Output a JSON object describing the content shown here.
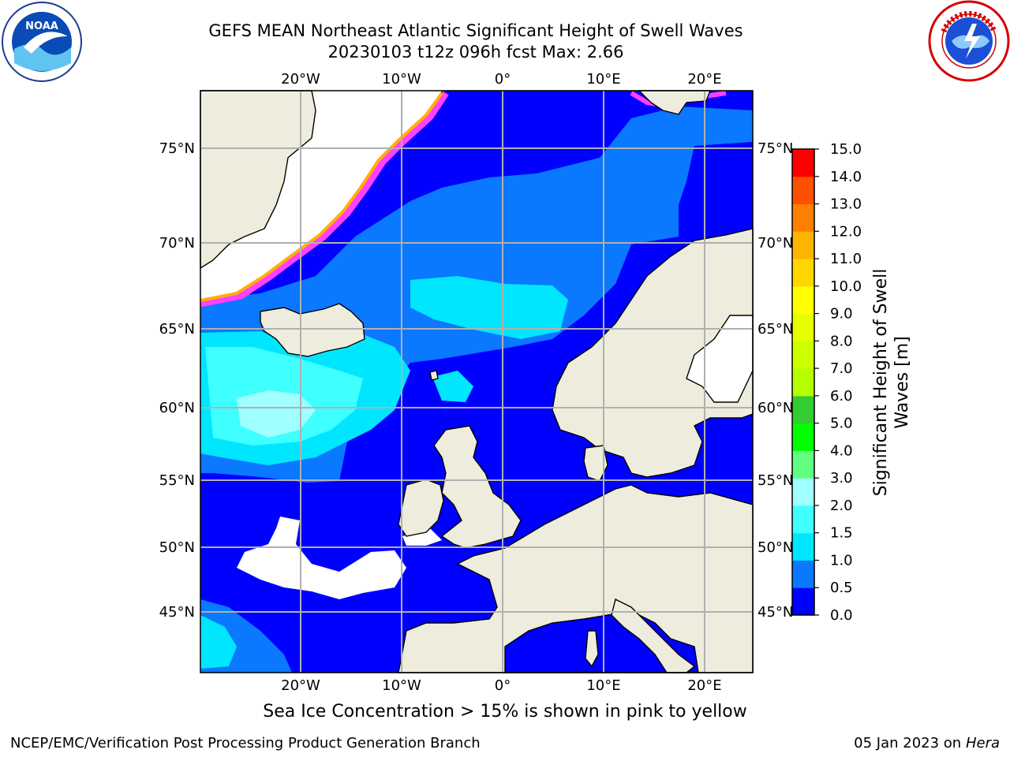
{
  "header": {
    "title_line1": "GEFS MEAN Northeast Atlantic Significant Height of Swell Waves",
    "title_line2": "20230103 t12z 096h fcst   Max: 2.66"
  },
  "logos": {
    "left": {
      "icon": "noaa-logo-icon",
      "text": "NOAA"
    },
    "right": {
      "icon": "national-weather-service-logo-icon",
      "text": "NATIONAL WEATHER SERVICE"
    }
  },
  "map": {
    "projection": "lat-lon",
    "top_axis_labels": [
      "20°W",
      "10°W",
      "0°",
      "10°E",
      "20°E"
    ],
    "bottom_axis_labels": [
      "20°W",
      "10°W",
      "0°",
      "10°E",
      "20°E"
    ],
    "left_axis_labels": [
      "75°N",
      "70°N",
      "65°N",
      "60°N",
      "55°N",
      "50°N",
      "45°N"
    ],
    "right_axis_labels": [
      "75°N",
      "70°N",
      "65°N",
      "60°N",
      "55°N",
      "50°N",
      "45°N"
    ],
    "grid": true,
    "land_color": "#eeeddd",
    "ocean_base_color": "#0000ff"
  },
  "colorbar": {
    "label": "Significant Height of Swell Waves [m]",
    "ticks": [
      "0.0",
      "0.5",
      "1.0",
      "1.5",
      "2.0",
      "3.0",
      "4.0",
      "5.0",
      "6.0",
      "7.0",
      "8.0",
      "9.0",
      "10.0",
      "11.0",
      "12.0",
      "13.0",
      "14.0",
      "15.0"
    ],
    "colors": [
      "#0000ff",
      "#0a78ff",
      "#00e6ff",
      "#40ffff",
      "#a0ffff",
      "#60ff80",
      "#00ff00",
      "#33cc33",
      "#b3ff00",
      "#ccff00",
      "#e6ff00",
      "#ffff00",
      "#ffd700",
      "#ffb400",
      "#ff8000",
      "#ff5000",
      "#ff0000"
    ]
  },
  "caption": "Sea Ice Concentration > 15% is shown in pink to yellow",
  "footer": {
    "left": "NCEP/EMC/Verification Post Processing Product Generation Branch",
    "right_date": "05 Jan 2023 on ",
    "right_machine": "Hera"
  }
}
